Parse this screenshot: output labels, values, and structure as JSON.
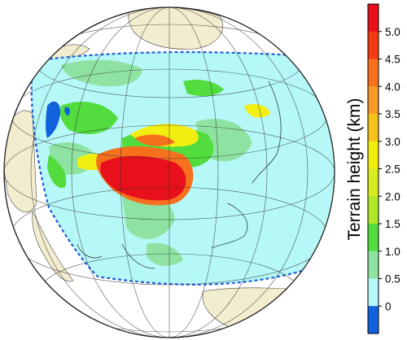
{
  "colorbar": {
    "title": "Terrain height (km)",
    "tick_labels": [
      "5.0",
      "4.5",
      "4.0",
      "3.5",
      "3.0",
      "2.5",
      "2.0",
      "1.5",
      "1.0",
      "0.5",
      "0"
    ],
    "bins": [
      {
        "color": "#e8101a"
      },
      {
        "color": "#f53a14"
      },
      {
        "color": "#f6701e"
      },
      {
        "color": "#f79b28"
      },
      {
        "color": "#f5c21c"
      },
      {
        "color": "#f2ee10"
      },
      {
        "color": "#d6ec22"
      },
      {
        "color": "#b1e528"
      },
      {
        "color": "#53dc3e"
      },
      {
        "color": "#8ee3a2"
      },
      {
        "color": "#b6f8f8"
      },
      {
        "color": "#1162dc"
      }
    ]
  },
  "map": {
    "projection": "orthographic",
    "ocean_color": "#ffffff",
    "land_color": "#f3edcf",
    "domain_fill": "#b6f8f8",
    "domain_border_color": "#1f5fd6",
    "domain_border_style": "dashed"
  }
}
